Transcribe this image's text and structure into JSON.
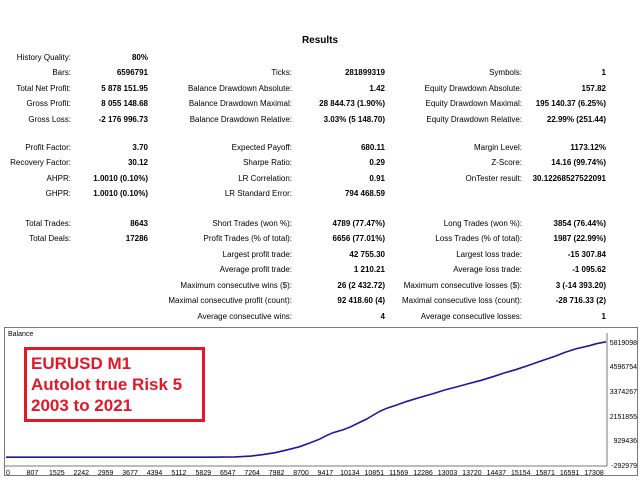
{
  "title": "Results",
  "rows": [
    {
      "cells": [
        [
          "History Quality:",
          "80%"
        ],
        null,
        null
      ]
    },
    {
      "cells": [
        [
          "Bars:",
          "6596791"
        ],
        [
          "Ticks:",
          "281899319"
        ],
        [
          "Symbols:",
          "1"
        ]
      ]
    },
    {
      "cells": [
        [
          "Total Net Profit:",
          "5 878 151.95"
        ],
        [
          "Balance Drawdown Absolute:",
          "1.42"
        ],
        [
          "Equity Drawdown Absolute:",
          "157.82"
        ]
      ]
    },
    {
      "cells": [
        [
          "Gross Profit:",
          "8 055 148.68"
        ],
        [
          "Balance Drawdown Maximal:",
          "28 844.73 (1.90%)"
        ],
        [
          "Equity Drawdown Maximal:",
          "195 140.37 (6.25%)"
        ]
      ]
    },
    {
      "cells": [
        [
          "Gross Loss:",
          "-2 176 996.73"
        ],
        [
          "Balance Drawdown Relative:",
          "3.03% (5 148.70)"
        ],
        [
          "Equity Drawdown Relative:",
          "22.99% (251.44)"
        ]
      ]
    },
    {
      "cells": [
        [
          "Profit Factor:",
          "3.70"
        ],
        [
          "Expected Payoff:",
          "680.11"
        ],
        [
          "Margin Level:",
          "1173.12%"
        ]
      ]
    },
    {
      "cells": [
        [
          "Recovery Factor:",
          "30.12"
        ],
        [
          "Sharpe Ratio:",
          "0.29"
        ],
        [
          "Z-Score:",
          "14.16 (99.74%)"
        ]
      ]
    },
    {
      "cells": [
        [
          "AHPR:",
          "1.0010 (0.10%)"
        ],
        [
          "LR Correlation:",
          "0.91"
        ],
        [
          "OnTester result:",
          "30.12268527522091"
        ]
      ]
    },
    {
      "cells": [
        [
          "GHPR:",
          "1.0010 (0.10%)"
        ],
        [
          "LR Standard Error:",
          "794 468.59"
        ],
        null
      ]
    },
    {
      "cells": [
        [
          "Total Trades:",
          "8643"
        ],
        [
          "Short Trades (won %):",
          "4789 (77.47%)"
        ],
        [
          "Long Trades (won %):",
          "3854 (76.44%)"
        ]
      ]
    },
    {
      "cells": [
        [
          "Total Deals:",
          "17286"
        ],
        [
          "Profit Trades (% of total):",
          "6656 (77.01%)"
        ],
        [
          "Loss Trades (% of total):",
          "1987 (22.99%)"
        ]
      ]
    },
    {
      "cells": [
        null,
        [
          "Largest profit trade:",
          "42 755.30"
        ],
        [
          "Largest loss trade:",
          "-15 307.84"
        ]
      ]
    },
    {
      "cells": [
        null,
        [
          "Average profit trade:",
          "1 210.21"
        ],
        [
          "Average loss trade:",
          "-1 095.62"
        ]
      ]
    },
    {
      "cells": [
        null,
        [
          "Maximum consecutive wins ($):",
          "26 (2 432.72)"
        ],
        [
          "Maximum consecutive losses ($):",
          "3 (-14 393.20)"
        ]
      ]
    },
    {
      "cells": [
        null,
        [
          "Maximal consecutive profit (count):",
          "92 418.60 (4)"
        ],
        [
          "Maximal consecutive loss (count):",
          "-28 716.33 (2)"
        ]
      ]
    },
    {
      "cells": [
        null,
        [
          "Average consecutive wins:",
          "4"
        ],
        [
          "Average consecutive losses:",
          "1"
        ]
      ]
    }
  ],
  "chart_label": "Balance",
  "annotation": [
    "EURUSD M1",
    "Autolot true Risk 5",
    "2003 to 2021"
  ],
  "colors": {
    "balance_line": "#1a1a9e",
    "annotation": "#e4172a"
  },
  "chart_data": {
    "type": "line",
    "title": "",
    "series": [
      {
        "name": "Balance",
        "x": [
          0,
          1000,
          2000,
          3000,
          4000,
          5000,
          6000,
          6800,
          7264,
          7600,
          7982,
          8300,
          8700,
          9000,
          9300,
          9500,
          9700,
          10000,
          10200,
          10400,
          10700,
          10900,
          11100,
          11300,
          11569,
          11900,
          12286,
          12700,
          13003,
          13400,
          13720,
          14100,
          14437,
          14800,
          15154,
          15500,
          15871,
          16300,
          16591,
          16900,
          17308,
          17500,
          17800
        ],
        "y": [
          0,
          0,
          0,
          0,
          0,
          0,
          0,
          20000,
          60000,
          130000,
          230000,
          360000,
          530000,
          720000,
          920000,
          1100000,
          1250000,
          1400000,
          1530000,
          1700000,
          1950000,
          2150000,
          2350000,
          2500000,
          2650000,
          2850000,
          3050000,
          3250000,
          3420000,
          3600000,
          3750000,
          3920000,
          4100000,
          4300000,
          4480000,
          4680000,
          4900000,
          5150000,
          5350000,
          5520000,
          5680000,
          5780000,
          5878152
        ]
      }
    ],
    "y_ticks": [
      "5819098",
      "4596754",
      "3374267",
      "2151855",
      "929436",
      "-292979"
    ],
    "x_ticks": [
      "0",
      "807",
      "1525",
      "2242",
      "2959",
      "3677",
      "4394",
      "5112",
      "5829",
      "6547",
      "7264",
      "7982",
      "8700",
      "9417",
      "10134",
      "10851",
      "11569",
      "12286",
      "13003",
      "13720",
      "14437",
      "15154",
      "15871",
      "16591",
      "17308"
    ],
    "ylim": [
      -292979,
      5819098
    ],
    "xlim": [
      0,
      17800
    ],
    "grid": false
  }
}
